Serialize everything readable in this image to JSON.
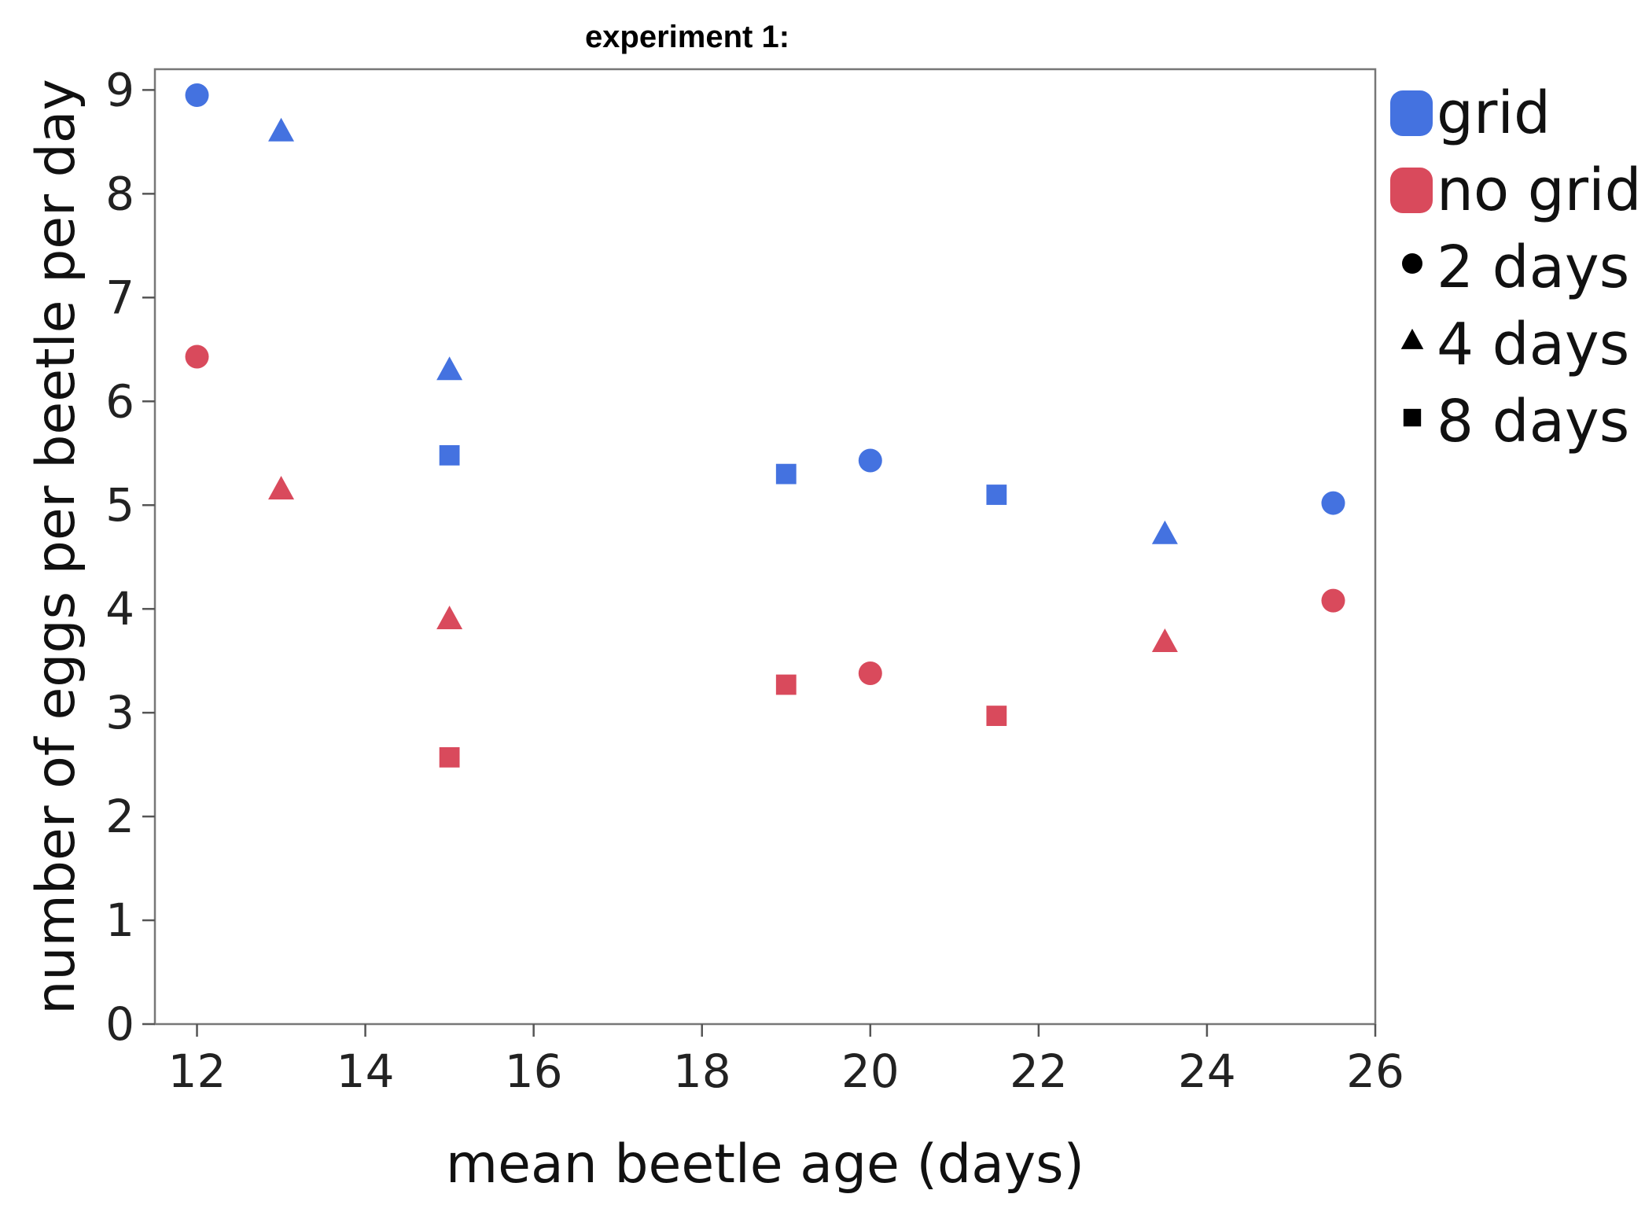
{
  "chart_data": {
    "type": "scatter",
    "title": "experiment 1:",
    "xlabel": "mean beetle age (days)",
    "ylabel": "number of eggs per beetle per day",
    "xlim": [
      11.5,
      26
    ],
    "ylim": [
      0,
      9.2
    ],
    "xticks": [
      12,
      14,
      16,
      18,
      20,
      22,
      24,
      26
    ],
    "yticks": [
      0,
      1,
      2,
      3,
      4,
      5,
      6,
      7,
      8,
      9
    ],
    "grid": false,
    "legend_position": "right",
    "color_legend": [
      {
        "label": "grid",
        "color": "#4472E0"
      },
      {
        "label": "no grid",
        "color": "#D94A5C"
      }
    ],
    "shape_legend": [
      {
        "label": "2 days",
        "shape": "circle"
      },
      {
        "label": "4 days",
        "shape": "triangle"
      },
      {
        "label": "8 days",
        "shape": "square"
      }
    ],
    "series": [
      {
        "name": "grid",
        "color": "#4472E0",
        "points": [
          {
            "x": 12,
            "y": 8.95,
            "shape": "circle"
          },
          {
            "x": 13,
            "y": 8.6,
            "shape": "triangle"
          },
          {
            "x": 15,
            "y": 6.3,
            "shape": "triangle"
          },
          {
            "x": 15,
            "y": 5.48,
            "shape": "square"
          },
          {
            "x": 19,
            "y": 5.3,
            "shape": "square"
          },
          {
            "x": 20,
            "y": 5.43,
            "shape": "circle"
          },
          {
            "x": 21.5,
            "y": 5.1,
            "shape": "square"
          },
          {
            "x": 23.5,
            "y": 4.72,
            "shape": "triangle"
          },
          {
            "x": 25.5,
            "y": 5.02,
            "shape": "circle"
          }
        ]
      },
      {
        "name": "no grid",
        "color": "#D94A5C",
        "points": [
          {
            "x": 12,
            "y": 6.43,
            "shape": "circle"
          },
          {
            "x": 13,
            "y": 5.15,
            "shape": "triangle"
          },
          {
            "x": 15,
            "y": 3.9,
            "shape": "triangle"
          },
          {
            "x": 15,
            "y": 2.57,
            "shape": "square"
          },
          {
            "x": 19,
            "y": 3.27,
            "shape": "square"
          },
          {
            "x": 20,
            "y": 3.38,
            "shape": "circle"
          },
          {
            "x": 21.5,
            "y": 2.97,
            "shape": "square"
          },
          {
            "x": 23.5,
            "y": 3.68,
            "shape": "triangle"
          },
          {
            "x": 25.5,
            "y": 4.08,
            "shape": "circle"
          }
        ]
      }
    ]
  }
}
